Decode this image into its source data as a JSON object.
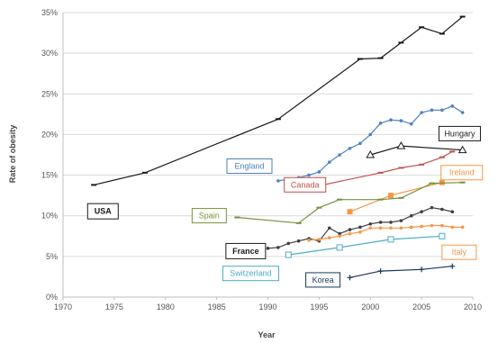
{
  "chart_data": {
    "type": "line",
    "title": "",
    "xlabel": "Year",
    "ylabel": "Rate of obesity",
    "xlim": [
      1970,
      2010
    ],
    "ylim": [
      0,
      35
    ],
    "x_ticks": [
      "1970",
      "1975",
      "1980",
      "1985",
      "1990",
      "1995",
      "2000",
      "2005",
      "2010"
    ],
    "y_ticks": [
      "0%",
      "5%",
      "10%",
      "15%",
      "20%",
      "25%",
      "30%",
      "35%"
    ],
    "grid": "horizontal",
    "legend": "inline labels",
    "series": [
      {
        "name": "USA",
        "color": "#1a1a1a",
        "marker": "dash",
        "x": [
          1973,
          1978,
          1991,
          1999,
          2001,
          2003,
          2005,
          2007,
          2009
        ],
        "y": [
          13.8,
          15.3,
          21.9,
          29.3,
          29.4,
          31.3,
          33.2,
          32.4,
          34.5
        ]
      },
      {
        "name": "England",
        "color": "#4f81bd",
        "marker": "dot",
        "x": [
          1991,
          1992,
          1993,
          1994,
          1995,
          1996,
          1997,
          1998,
          1999,
          2000,
          2001,
          2002,
          2003,
          2004,
          2005,
          2006,
          2007,
          2008,
          2009
        ],
        "y": [
          14.3,
          14.5,
          14.7,
          15.0,
          15.4,
          16.6,
          17.5,
          18.3,
          18.9,
          20.0,
          21.4,
          21.8,
          21.7,
          21.3,
          22.7,
          23.0,
          23.0,
          23.5,
          22.7
        ]
      },
      {
        "name": "Hungary",
        "color": "#1a1a1a",
        "marker": "triangle-open",
        "x": [
          2000,
          2003,
          2009
        ],
        "y": [
          17.5,
          18.6,
          18.1
        ]
      },
      {
        "name": "Canada",
        "color": "#c0504d",
        "marker": "dash",
        "x": [
          1995,
          2001,
          2003,
          2005,
          2007,
          2008
        ],
        "y": [
          13.7,
          15.3,
          15.9,
          16.3,
          17.2,
          17.9
        ]
      },
      {
        "name": "Ireland",
        "color": "#f79646",
        "marker": "square",
        "x": [
          1998,
          2002,
          2007
        ],
        "y": [
          10.5,
          12.5,
          14.1
        ]
      },
      {
        "name": "Spain",
        "color": "#76923c",
        "marker": "dash",
        "x": [
          1987,
          1993,
          1995,
          1997,
          2001,
          2003,
          2006,
          2009
        ],
        "y": [
          9.8,
          9.1,
          11.0,
          12.0,
          12.0,
          12.2,
          14.0,
          14.1
        ]
      },
      {
        "name": "France",
        "color": "#404040",
        "marker": "dot",
        "x": [
          1990,
          1991,
          1992,
          1993,
          1994,
          1995,
          1996,
          1997,
          1998,
          1999,
          2000,
          2001,
          2002,
          2003,
          2004,
          2005,
          2006,
          2007,
          2008
        ],
        "y": [
          6.0,
          6.1,
          6.6,
          6.9,
          7.2,
          6.9,
          8.5,
          7.8,
          8.3,
          8.6,
          9.0,
          9.2,
          9.2,
          9.4,
          10.0,
          10.5,
          11.0,
          10.8,
          10.5
        ]
      },
      {
        "name": "Italy",
        "color": "#f79646",
        "marker": "dot",
        "x": [
          1994,
          1995,
          1996,
          1997,
          1998,
          1999,
          2000,
          2001,
          2002,
          2003,
          2004,
          2005,
          2006,
          2007,
          2008,
          2009
        ],
        "y": [
          7.0,
          7.1,
          7.3,
          7.5,
          7.8,
          8.0,
          8.5,
          8.5,
          8.5,
          8.5,
          8.6,
          8.7,
          8.8,
          8.8,
          8.6,
          8.6
        ]
      },
      {
        "name": "Switzerland",
        "color": "#4bacc6",
        "marker": "square-open",
        "x": [
          1992,
          1997,
          2002,
          2007
        ],
        "y": [
          5.2,
          6.1,
          7.1,
          7.5
        ]
      },
      {
        "name": "Korea",
        "color": "#17375e",
        "marker": "plus",
        "x": [
          1998,
          2001,
          2005,
          2008
        ],
        "y": [
          2.4,
          3.2,
          3.4,
          3.8
        ]
      }
    ]
  }
}
